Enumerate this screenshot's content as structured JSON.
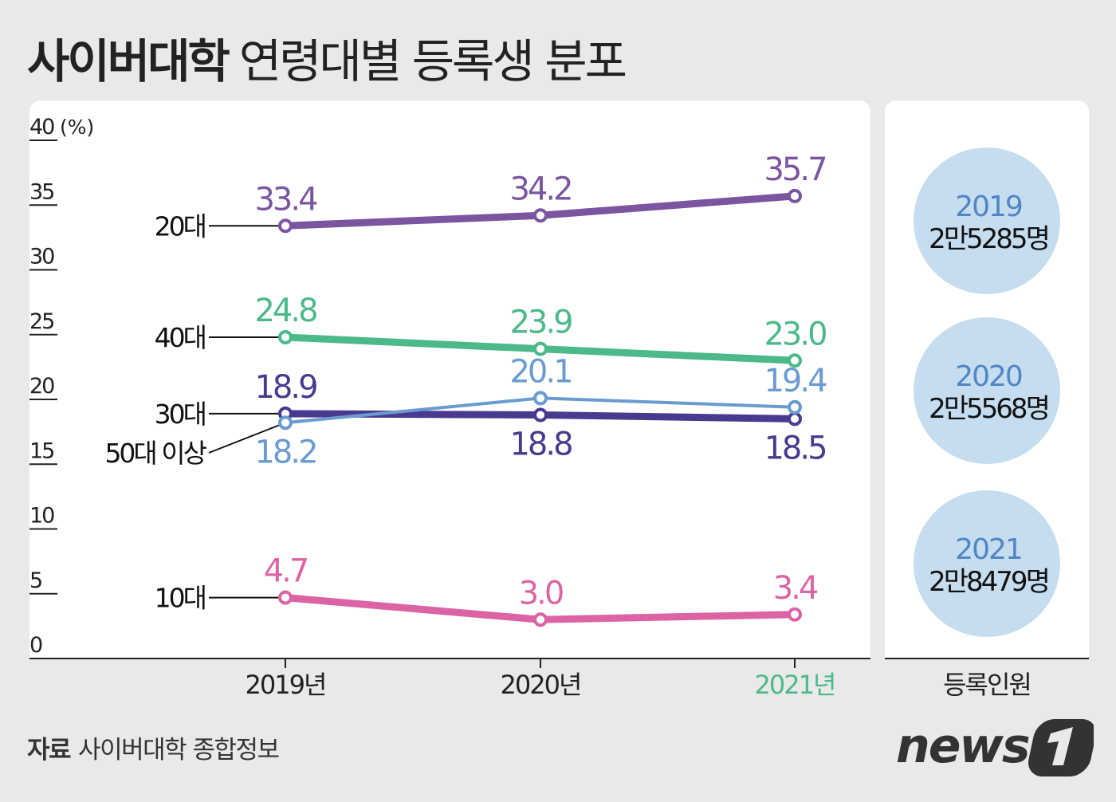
{
  "title": {
    "bold": "사이버대학",
    "rest": "연령대별 등록생 분포"
  },
  "source": {
    "label": "자료",
    "text": "사이버대학 종합정보"
  },
  "logo_text": "news1",
  "chart_data": {
    "type": "line",
    "ylabel": "(%)",
    "ylim": [
      0,
      40
    ],
    "yticks": [
      "0",
      "5",
      "10",
      "15",
      "20",
      "25",
      "30",
      "35",
      "40"
    ],
    "categories": [
      "2019년",
      "2020년",
      "2021년"
    ],
    "highlight_category_color": "#4cb98a",
    "grid": false,
    "series": [
      {
        "name": "20대",
        "color": "#7b55a0",
        "values": [
          33.4,
          34.2,
          35.7
        ],
        "labels": [
          "33.4",
          "34.2",
          "35.7"
        ]
      },
      {
        "name": "40대",
        "color": "#4cb98a",
        "values": [
          24.8,
          23.9,
          23.0
        ],
        "labels": [
          "24.8",
          "23.9",
          "23.0"
        ]
      },
      {
        "name": "30대",
        "color": "#4a3a8f",
        "values": [
          18.9,
          18.8,
          18.5
        ],
        "labels": [
          "18.9",
          "18.8",
          "18.5"
        ]
      },
      {
        "name": "50대 이상",
        "color": "#6a9bd0",
        "values": [
          18.2,
          20.1,
          19.4
        ],
        "labels": [
          "18.2",
          "20.1",
          "19.4"
        ]
      },
      {
        "name": "10대",
        "color": "#dc64a4",
        "values": [
          4.7,
          3.0,
          3.4
        ],
        "labels": [
          "4.7",
          "3.0",
          "3.4"
        ]
      }
    ],
    "side_panel": {
      "label": "등록인원",
      "circle_color": "#c5ddef",
      "year_color": "#4f86c6",
      "items": [
        {
          "year": "2019",
          "count": "2만5285명"
        },
        {
          "year": "2020",
          "count": "2만5568명"
        },
        {
          "year": "2021",
          "count": "2만8479명"
        }
      ]
    }
  }
}
